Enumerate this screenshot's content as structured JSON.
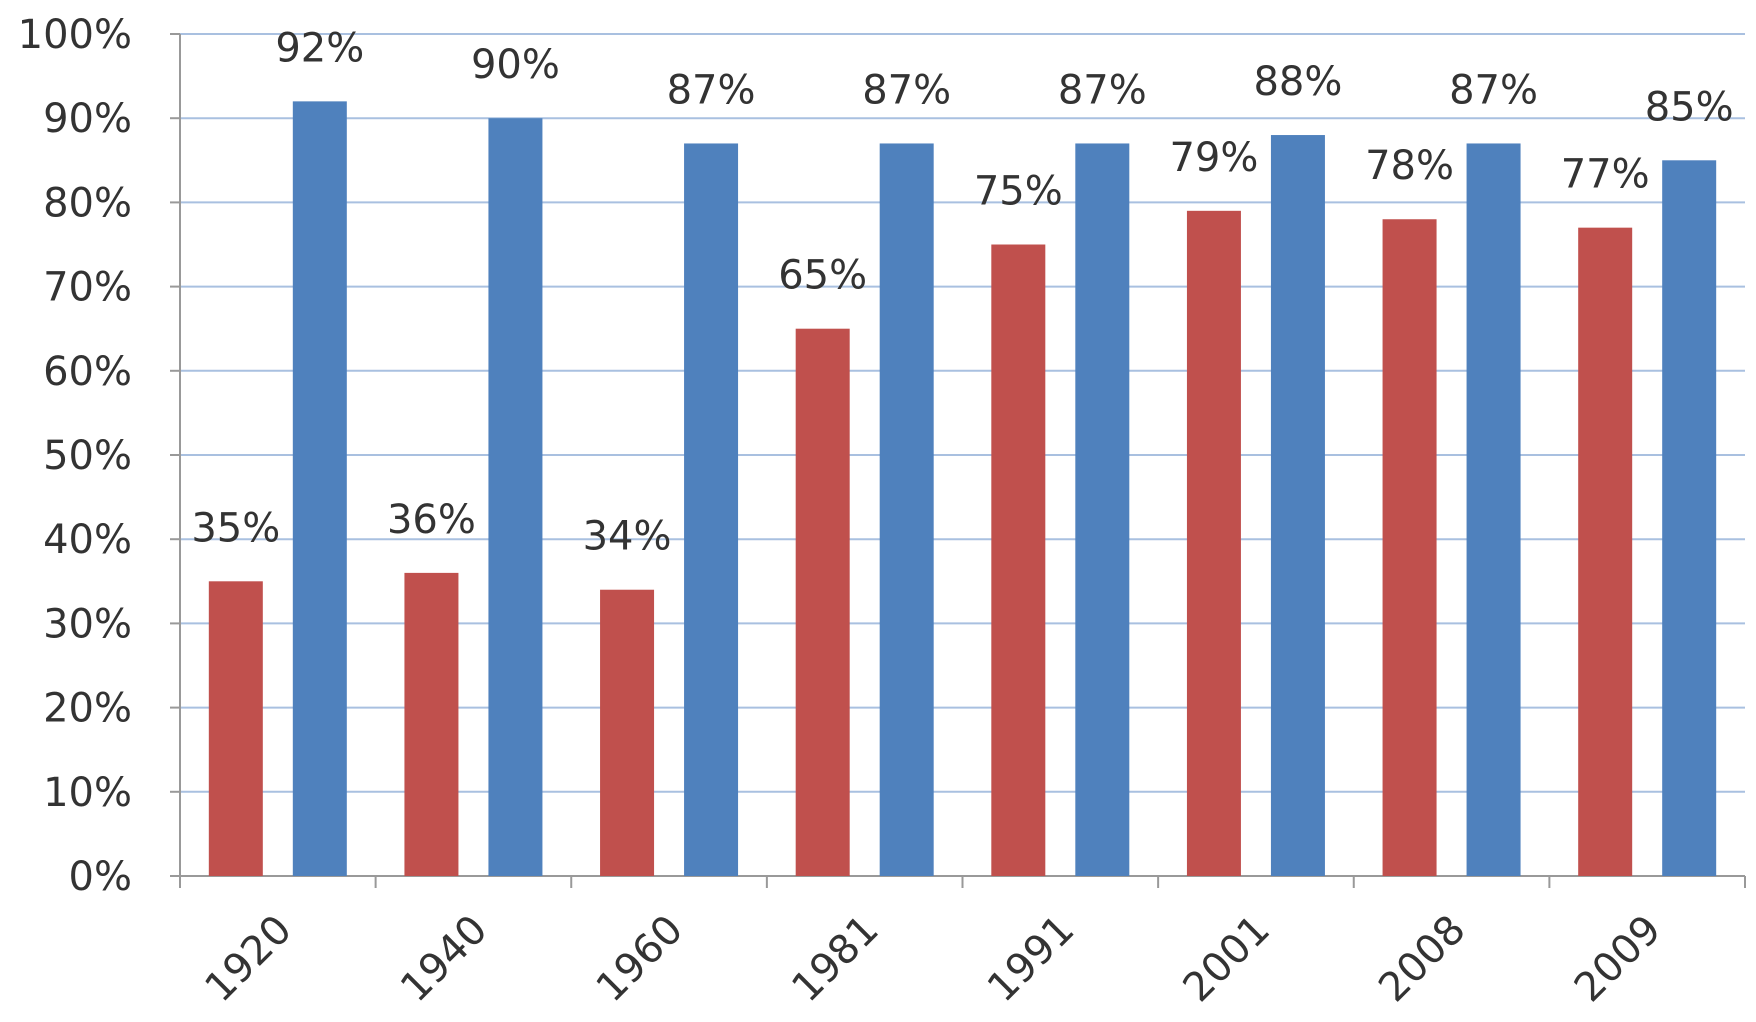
{
  "chart_data": {
    "type": "bar",
    "categories": [
      "1920",
      "1940",
      "1960",
      "1981",
      "1991",
      "2001",
      "2008",
      "2009"
    ],
    "series": [
      {
        "color": "#c0504d",
        "values": [
          35,
          36,
          34,
          65,
          75,
          79,
          78,
          77
        ],
        "labels": [
          "35%",
          "36%",
          "34%",
          "65%",
          "75%",
          "79%",
          "78%",
          "77%"
        ]
      },
      {
        "color": "#4f81bd",
        "values": [
          92,
          90,
          87,
          87,
          87,
          88,
          87,
          85
        ],
        "labels": [
          "92%",
          "90%",
          "87%",
          "87%",
          "87%",
          "88%",
          "87%",
          "85%"
        ]
      }
    ],
    "y_ticks": [
      "0%",
      "10%",
      "20%",
      "30%",
      "40%",
      "50%",
      "60%",
      "70%",
      "80%",
      "90%",
      "100%"
    ],
    "ylim": [
      0,
      100
    ],
    "grid": true,
    "legend": false,
    "title": "",
    "xlabel": "",
    "ylabel": ""
  }
}
